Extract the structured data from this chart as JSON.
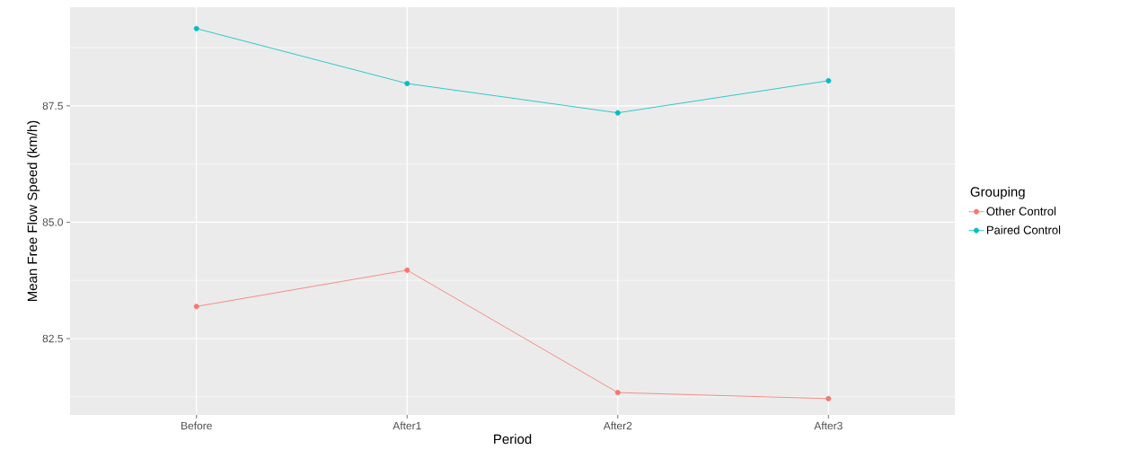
{
  "chart_data": {
    "type": "line",
    "xlabel": "Period",
    "ylabel": "Mean Free Flow Speed (km/h)",
    "legend_title": "Grouping",
    "categories": [
      "Before",
      "After1",
      "After2",
      "After3"
    ],
    "series": [
      {
        "name": "Other Control",
        "color": "#f8766d",
        "values": [
          83.19,
          83.97,
          81.34,
          81.21
        ]
      },
      {
        "name": "Paired Control",
        "color": "#00bfc4",
        "values": [
          89.16,
          87.98,
          87.35,
          88.04
        ]
      }
    ],
    "ylim": [
      80.86,
      89.62
    ],
    "yticks": [
      82.5,
      {
        "value": 85.0,
        "label": "85.0"
      },
      87.5
    ],
    "grid": true,
    "legend": "right",
    "marker": "circle",
    "line_style": "solid"
  }
}
